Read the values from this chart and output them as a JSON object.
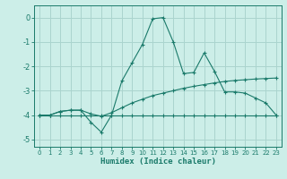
{
  "xlabel": "Humidex (Indice chaleur)",
  "bg_color": "#cceee8",
  "grid_color": "#aad4ce",
  "line_color": "#1a7a6a",
  "xlim": [
    -0.5,
    23.5
  ],
  "ylim": [
    -5.3,
    0.5
  ],
  "yticks": [
    0,
    -1,
    -2,
    -3,
    -4,
    -5
  ],
  "xticks": [
    0,
    1,
    2,
    3,
    4,
    5,
    6,
    7,
    8,
    9,
    10,
    11,
    12,
    13,
    14,
    15,
    16,
    17,
    18,
    19,
    20,
    21,
    22,
    23
  ],
  "line_flat_x": [
    0,
    1,
    2,
    3,
    4,
    5,
    6,
    7,
    8,
    9,
    10,
    11,
    12,
    13,
    14,
    15,
    16,
    17,
    18,
    19,
    20,
    21,
    22,
    23
  ],
  "line_flat_y": [
    -4.0,
    -4.0,
    -4.0,
    -4.0,
    -4.0,
    -4.0,
    -4.0,
    -4.0,
    -4.0,
    -4.0,
    -4.0,
    -4.0,
    -4.0,
    -4.0,
    -4.0,
    -4.0,
    -4.0,
    -4.0,
    -4.0,
    -4.0,
    -4.0,
    -4.0,
    -4.0,
    -4.0
  ],
  "line_smooth_x": [
    0,
    1,
    2,
    3,
    4,
    5,
    6,
    7,
    8,
    9,
    10,
    11,
    12,
    13,
    14,
    15,
    16,
    17,
    18,
    19,
    20,
    21,
    22,
    23
  ],
  "line_smooth_y": [
    -4.0,
    -4.0,
    -3.85,
    -3.8,
    -3.8,
    -3.95,
    -4.05,
    -3.9,
    -3.7,
    -3.5,
    -3.35,
    -3.2,
    -3.1,
    -3.0,
    -2.9,
    -2.82,
    -2.75,
    -2.68,
    -2.62,
    -2.58,
    -2.55,
    -2.52,
    -2.5,
    -2.48
  ],
  "line_jagged_x": [
    0,
    1,
    2,
    3,
    4,
    5,
    6,
    7,
    8,
    9,
    10,
    11,
    12,
    13,
    14,
    15,
    16,
    17,
    18,
    19,
    20,
    21,
    22,
    23
  ],
  "line_jagged_y": [
    -4.0,
    -4.0,
    -3.85,
    -3.8,
    -3.8,
    -4.3,
    -4.7,
    -4.0,
    -2.6,
    -1.85,
    -1.1,
    -0.05,
    0.0,
    -1.0,
    -2.3,
    -2.25,
    -1.45,
    -2.2,
    -3.05,
    -3.05,
    -3.1,
    -3.3,
    -3.5,
    -4.0
  ]
}
